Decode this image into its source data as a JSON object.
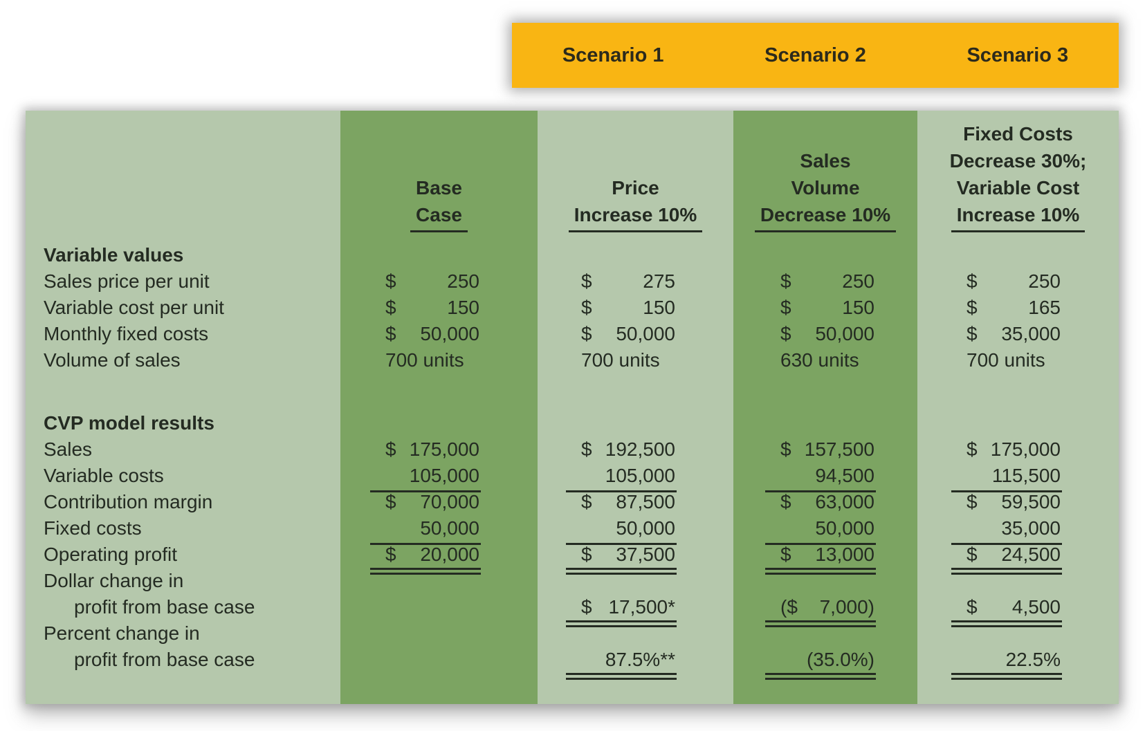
{
  "banner": {
    "items": [
      "Scenario 1",
      "Scenario 2",
      "Scenario 3"
    ]
  },
  "colors": {
    "banner_bg": "#f9b513",
    "column_light_green": "#b5c8ac",
    "column_dark_green": "#7ca462",
    "ink": "#242b22"
  },
  "headers": {
    "base": [
      "Base",
      "Case"
    ],
    "s1": [
      "Price",
      "Increase 10%"
    ],
    "s2": [
      "Sales",
      "Volume",
      "Decrease 10%"
    ],
    "s3": [
      "Fixed Costs",
      "Decrease 30%;",
      "Variable Cost",
      "Increase 10%"
    ]
  },
  "rows": {
    "section1": "Variable values",
    "sales_price": {
      "label": "Sales price per unit",
      "c1": {
        "d": "$",
        "v": "250"
      },
      "c2": {
        "d": "$",
        "v": "275"
      },
      "c3": {
        "d": "$",
        "v": "250"
      },
      "c4": {
        "d": "$",
        "v": "250"
      }
    },
    "var_cost": {
      "label": "Variable cost per unit",
      "c1": {
        "d": "$",
        "v": "150"
      },
      "c2": {
        "d": "$",
        "v": "150"
      },
      "c3": {
        "d": "$",
        "v": "150"
      },
      "c4": {
        "d": "$",
        "v": "165"
      }
    },
    "fixed_costs_m": {
      "label": "Monthly fixed costs",
      "c1": {
        "d": "$",
        "v": "50,000"
      },
      "c2": {
        "d": "$",
        "v": "50,000"
      },
      "c3": {
        "d": "$",
        "v": "50,000"
      },
      "c4": {
        "d": "$",
        "v": "35,000"
      }
    },
    "volume": {
      "label": "Volume of sales",
      "c1": {
        "v": "700 units"
      },
      "c2": {
        "v": "700 units"
      },
      "c3": {
        "v": "630 units"
      },
      "c4": {
        "v": "700 units"
      }
    },
    "section2": "CVP model results",
    "sales": {
      "label": "Sales",
      "c1": {
        "d": "$",
        "v": "175,000"
      },
      "c2": {
        "d": "$",
        "v": "192,500"
      },
      "c3": {
        "d": "$",
        "v": "157,500"
      },
      "c4": {
        "d": "$",
        "v": "175,000"
      }
    },
    "var_costs": {
      "label": "Variable costs",
      "c1": {
        "v": "105,000"
      },
      "c2": {
        "v": "105,000"
      },
      "c3": {
        "v": "94,500"
      },
      "c4": {
        "v": "115,500"
      }
    },
    "contrib": {
      "label": "Contribution margin",
      "c1": {
        "d": "$",
        "v": "70,000"
      },
      "c2": {
        "d": "$",
        "v": "87,500"
      },
      "c3": {
        "d": "$",
        "v": "63,000"
      },
      "c4": {
        "d": "$",
        "v": "59,500"
      }
    },
    "fixed_costs": {
      "label": "Fixed costs",
      "c1": {
        "v": "50,000"
      },
      "c2": {
        "v": "50,000"
      },
      "c3": {
        "v": "50,000"
      },
      "c4": {
        "v": "35,000"
      }
    },
    "op_profit": {
      "label": "Operating profit",
      "c1": {
        "d": "$",
        "v": "20,000"
      },
      "c2": {
        "d": "$",
        "v": "37,500"
      },
      "c3": {
        "d": "$",
        "v": "13,000"
      },
      "c4": {
        "d": "$",
        "v": "24,500"
      }
    },
    "dollar_change_line1": "Dollar change in",
    "dollar_change": {
      "label": "profit from base case",
      "c2": {
        "d": "$",
        "v": "17,500*"
      },
      "c3": {
        "d": "($",
        "v": "7,000)"
      },
      "c4": {
        "d": "$",
        "v": "4,500"
      }
    },
    "pct_change_line1": "Percent change in",
    "pct_change": {
      "label": "profit from base case",
      "c2": {
        "v": "87.5%**"
      },
      "c3": {
        "v": "(35.0%)"
      },
      "c4": {
        "v": "22.5%"
      }
    }
  }
}
